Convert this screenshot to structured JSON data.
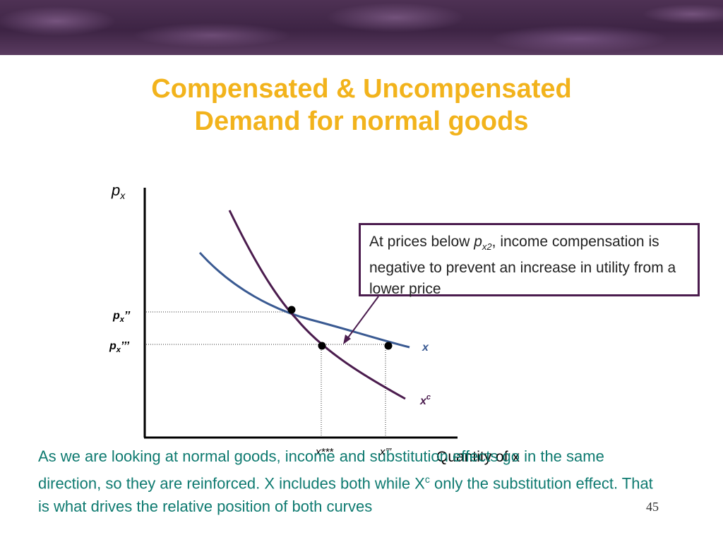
{
  "title": {
    "line1": "Compensated & Uncompensated",
    "line2": "Demand for normal goods"
  },
  "axis": {
    "y_label": "p",
    "y_sub": "x",
    "x_label": "Quantity of x"
  },
  "price_labels": {
    "px_double": {
      "base": "p",
      "sub": "x",
      "prime": "’’"
    },
    "px_triple": {
      "base": "p",
      "sub": "x",
      "prime": "’’’"
    }
  },
  "quantity_labels": {
    "x_triple": "x***",
    "x_double": "x’’’"
  },
  "curve_labels": {
    "uncompensated": "x",
    "compensated_base": "x",
    "compensated_sup": "c"
  },
  "note": {
    "text_before": "At prices below ",
    "var_base": "p",
    "var_sub": "x2",
    "text_after": ", income compensation is negative to prevent an increase in utility from a lower price"
  },
  "body_text": "As we are looking at normal goods, income and substitution effects go in the same direction, so they are reinforced. X includes both while X",
  "body_sup": "c",
  "body_text_end": " only the substitution effect. That is what drives the relative position of both curves",
  "page_number": "45",
  "colors": {
    "title": "#f2b31c",
    "uncompensated_curve": "#3a5a92",
    "compensated_curve": "#4b1c4e",
    "body_text": "#0e7a70",
    "note_border": "#4b1c4e"
  }
}
